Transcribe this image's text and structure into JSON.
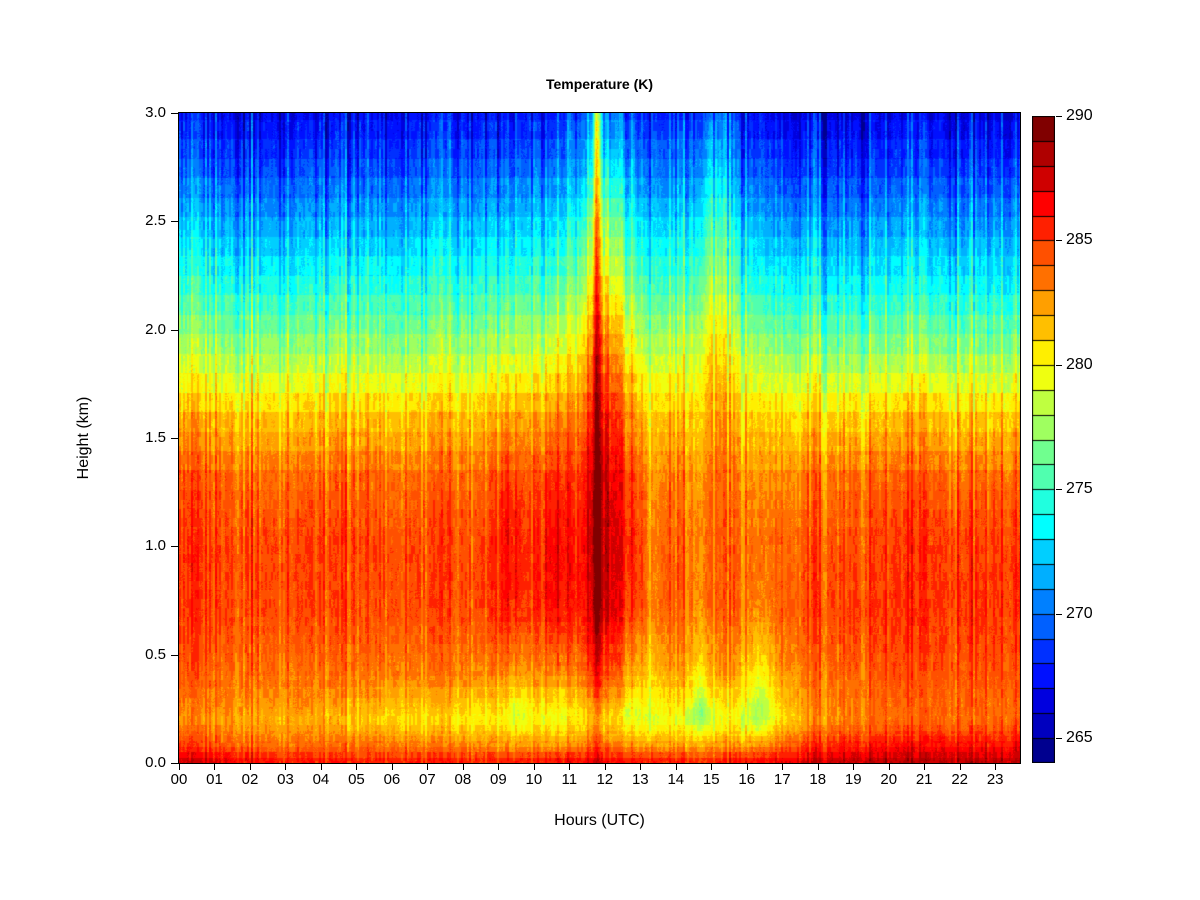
{
  "title": "Temperature (K)",
  "x_axis": {
    "label": "Hours (UTC)",
    "tick_labels": [
      "00",
      "01",
      "02",
      "03",
      "04",
      "05",
      "06",
      "07",
      "08",
      "09",
      "10",
      "11",
      "12",
      "13",
      "14",
      "15",
      "16",
      "17",
      "18",
      "19",
      "20",
      "21",
      "22",
      "23"
    ],
    "tick_hours": [
      0,
      1,
      2,
      3,
      4,
      5,
      6,
      7,
      8,
      9,
      10,
      11,
      12,
      13,
      14,
      15,
      16,
      17,
      18,
      19,
      20,
      21,
      22,
      23
    ],
    "hour_range": [
      0,
      23.7
    ]
  },
  "y_axis": {
    "label": "Height (km)",
    "tick_labels": [
      "0.0",
      "0.5",
      "1.0",
      "1.5",
      "2.0",
      "2.5",
      "3.0"
    ],
    "tick_values": [
      0,
      0.5,
      1.0,
      1.5,
      2.0,
      2.5,
      3.0
    ],
    "range_km": [
      0,
      3.0
    ]
  },
  "colorbar": {
    "min_K": 264,
    "max_K": 290,
    "tick_labels": [
      "265",
      "270",
      "275",
      "280",
      "285",
      "290"
    ],
    "tick_values": [
      265,
      270,
      275,
      280,
      285,
      290
    ],
    "n_blocks": 26,
    "palette_low_to_high": [
      "#00008F",
      "#0000BF",
      "#0000DF",
      "#0010FF",
      "#0030FF",
      "#0060FF",
      "#0080FF",
      "#00AFFF",
      "#00CFFF",
      "#00FFFF",
      "#20FFDF",
      "#50FFAF",
      "#70FF8F",
      "#9FFF60",
      "#BFFF40",
      "#EFFF10",
      "#FFEF00",
      "#FFBF00",
      "#FF9F00",
      "#FF7000",
      "#FF5000",
      "#FF2000",
      "#FF0000",
      "#CF0000",
      "#AF0000",
      "#800000"
    ]
  },
  "chart_data": {
    "type": "heatmap",
    "title": "Temperature (K)",
    "xlabel": "Hours (UTC)",
    "ylabel": "Height (km)",
    "x_hours": [
      0,
      1,
      2,
      3,
      4,
      5,
      6,
      7,
      8,
      9,
      10,
      11,
      12,
      13,
      14,
      15,
      16,
      17,
      18,
      19,
      20,
      21,
      22,
      23,
      24
    ],
    "y_heights_km": [
      0.0,
      0.08,
      0.2,
      0.4,
      0.7,
      1.0,
      1.3,
      1.6,
      1.9,
      2.2,
      2.5,
      2.75,
      3.0
    ],
    "temperature_K": [
      [
        287.8,
        287.5,
        286.8,
        286.3,
        286.2,
        286.0,
        286.0,
        286.0,
        286.0,
        286.2,
        286.3,
        286.5,
        287.0,
        286.3,
        286.2,
        286.2,
        286.5,
        287.2,
        287.8,
        288.0,
        288.2,
        288.2,
        288.3,
        288.3,
        288.3
      ],
      [
        285.0,
        284.5,
        284.0,
        283.8,
        283.8,
        283.6,
        283.5,
        283.4,
        283.3,
        283.0,
        282.8,
        282.8,
        283.5,
        282.8,
        282.6,
        282.6,
        282.8,
        284.0,
        285.3,
        285.8,
        286.0,
        286.2,
        286.3,
        286.3,
        286.3
      ],
      [
        282.8,
        282.6,
        282.4,
        282.2,
        282.0,
        281.4,
        281.0,
        280.8,
        280.6,
        280.2,
        280.0,
        280.0,
        280.6,
        280.0,
        279.6,
        279.4,
        279.5,
        281.0,
        282.6,
        283.2,
        283.5,
        283.6,
        283.7,
        283.7,
        283.7
      ],
      [
        284.0,
        283.9,
        283.8,
        283.7,
        283.6,
        283.5,
        283.4,
        283.3,
        283.2,
        283.0,
        282.8,
        282.8,
        284.0,
        282.5,
        282.2,
        282.2,
        282.0,
        282.8,
        283.6,
        284.0,
        284.2,
        284.3,
        284.4,
        284.4,
        284.4
      ],
      [
        284.9,
        284.9,
        284.8,
        284.8,
        284.7,
        284.6,
        284.6,
        284.6,
        284.7,
        285.0,
        285.0,
        285.0,
        286.5,
        284.8,
        284.0,
        283.8,
        283.8,
        284.2,
        284.6,
        284.9,
        285.0,
        285.1,
        285.2,
        285.2,
        285.2
      ],
      [
        285.0,
        285.0,
        284.9,
        284.9,
        284.8,
        284.7,
        284.7,
        284.7,
        284.8,
        285.1,
        285.2,
        285.2,
        287.0,
        284.9,
        284.0,
        283.8,
        283.8,
        284.0,
        284.3,
        284.6,
        284.8,
        285.0,
        285.0,
        285.0,
        285.0
      ],
      [
        284.2,
        284.2,
        284.1,
        284.0,
        284.0,
        283.9,
        283.9,
        283.9,
        284.0,
        284.3,
        284.4,
        284.4,
        286.5,
        284.2,
        283.4,
        283.2,
        283.0,
        283.2,
        283.5,
        283.8,
        284.0,
        284.0,
        284.0,
        284.0,
        284.0
      ],
      [
        281.8,
        281.8,
        281.7,
        281.6,
        281.6,
        281.5,
        281.5,
        281.5,
        281.7,
        282.0,
        282.2,
        282.4,
        285.0,
        282.2,
        281.6,
        281.8,
        281.2,
        281.0,
        281.0,
        281.2,
        281.3,
        281.4,
        281.4,
        281.4,
        281.4
      ],
      [
        277.8,
        277.8,
        277.7,
        277.7,
        277.6,
        277.6,
        277.6,
        277.7,
        278.0,
        278.4,
        278.7,
        279.0,
        283.0,
        279.0,
        278.4,
        280.0,
        278.0,
        277.4,
        277.0,
        277.0,
        277.1,
        277.1,
        277.2,
        277.2,
        277.2
      ],
      [
        274.6,
        274.6,
        274.5,
        274.4,
        274.4,
        274.4,
        274.4,
        274.6,
        274.9,
        275.2,
        275.4,
        275.7,
        280.0,
        275.9,
        275.4,
        277.2,
        274.7,
        274.0,
        273.6,
        273.6,
        273.7,
        273.7,
        273.8,
        273.8,
        273.8
      ],
      [
        271.6,
        271.6,
        271.5,
        271.4,
        271.4,
        271.4,
        271.5,
        271.7,
        272.0,
        272.3,
        272.5,
        272.8,
        277.0,
        273.0,
        272.6,
        274.5,
        271.9,
        271.1,
        270.8,
        270.8,
        270.9,
        270.9,
        271.0,
        271.0,
        271.0
      ],
      [
        269.2,
        269.2,
        269.1,
        269.0,
        269.0,
        269.0,
        269.1,
        269.3,
        269.6,
        269.8,
        270.0,
        270.2,
        273.5,
        270.4,
        270.1,
        271.8,
        269.4,
        268.7,
        268.4,
        268.4,
        268.5,
        268.5,
        268.6,
        268.6,
        268.6
      ],
      [
        267.2,
        267.2,
        267.1,
        267.0,
        267.0,
        267.0,
        267.1,
        267.3,
        267.6,
        267.8,
        268.0,
        268.2,
        270.8,
        268.4,
        268.1,
        269.5,
        267.4,
        266.7,
        266.5,
        266.5,
        266.6,
        266.6,
        266.7,
        266.7,
        266.7
      ]
    ],
    "streaks": [
      {
        "hour": 11.78,
        "sigma": 0.07,
        "amp_by_height": [
          [
            0.0,
            1.0
          ],
          [
            0.5,
            2.2
          ],
          [
            1.0,
            2.8
          ],
          [
            1.5,
            3.2
          ],
          [
            2.0,
            4.5
          ],
          [
            2.5,
            6.0
          ],
          [
            3.0,
            8.0
          ]
        ]
      },
      {
        "hour": 11.95,
        "sigma": 0.38,
        "amp_by_height": [
          [
            0.0,
            0.3
          ],
          [
            0.5,
            1.2
          ],
          [
            0.8,
            1.6
          ],
          [
            1.2,
            1.7
          ],
          [
            1.6,
            1.8
          ],
          [
            2.0,
            1.5
          ],
          [
            2.5,
            1.2
          ],
          [
            3.0,
            0.8
          ]
        ]
      },
      {
        "hour": 9.25,
        "sigma": 0.28,
        "amp_by_height": [
          [
            0.0,
            0.0
          ],
          [
            0.4,
            0.8
          ],
          [
            0.7,
            1.4
          ],
          [
            1.2,
            1.4
          ],
          [
            1.6,
            0.8
          ],
          [
            2.2,
            0.3
          ],
          [
            3.0,
            0.0
          ]
        ]
      },
      {
        "hour": 10.55,
        "sigma": 0.3,
        "amp_by_height": [
          [
            0.0,
            0.0
          ],
          [
            0.4,
            0.9
          ],
          [
            0.7,
            1.5
          ],
          [
            1.2,
            1.5
          ],
          [
            1.6,
            0.9
          ],
          [
            2.2,
            0.4
          ],
          [
            3.0,
            0.0
          ]
        ]
      },
      {
        "hour": 15.15,
        "sigma": 0.22,
        "amp_by_height": [
          [
            0.0,
            0.0
          ],
          [
            0.7,
            0.3
          ],
          [
            1.3,
            0.8
          ],
          [
            1.8,
            1.3
          ],
          [
            2.2,
            1.5
          ],
          [
            2.6,
            1.5
          ],
          [
            3.0,
            1.0
          ]
        ]
      },
      {
        "hour": 13.35,
        "sigma": 0.15,
        "amp_by_height": [
          [
            0.0,
            0.0
          ],
          [
            0.3,
            -1.2
          ],
          [
            0.7,
            -1.6
          ],
          [
            1.2,
            -1.5
          ],
          [
            1.6,
            -1.0
          ],
          [
            2.0,
            -0.5
          ],
          [
            3.0,
            0.0
          ]
        ]
      },
      {
        "hour": 14.7,
        "sigma": 0.18,
        "amp_by_height": [
          [
            0.0,
            0.0
          ],
          [
            0.1,
            -0.5
          ],
          [
            0.25,
            -2.6
          ],
          [
            0.5,
            -1.2
          ],
          [
            0.9,
            -0.4
          ],
          [
            3.0,
            0.0
          ]
        ]
      },
      {
        "hour": 16.4,
        "sigma": 0.28,
        "amp_by_height": [
          [
            0.0,
            0.0
          ],
          [
            0.1,
            -0.8
          ],
          [
            0.25,
            -3.0
          ],
          [
            0.5,
            -1.8
          ],
          [
            0.9,
            -0.6
          ],
          [
            1.4,
            -0.2
          ],
          [
            3.0,
            0.0
          ]
        ]
      },
      {
        "hour": 9.5,
        "sigma": 0.25,
        "amp_by_height": [
          [
            0.0,
            0.0
          ],
          [
            0.1,
            -0.4
          ],
          [
            0.25,
            -1.5
          ],
          [
            0.45,
            -0.8
          ],
          [
            0.8,
            0.0
          ],
          [
            3.0,
            0.0
          ]
        ]
      },
      {
        "hour": 10.7,
        "sigma": 0.25,
        "amp_by_height": [
          [
            0.0,
            0.0
          ],
          [
            0.1,
            -0.4
          ],
          [
            0.25,
            -1.3
          ],
          [
            0.45,
            -0.6
          ],
          [
            0.8,
            0.0
          ],
          [
            3.0,
            0.0
          ]
        ]
      },
      {
        "hour": 12.8,
        "sigma": 0.2,
        "amp_by_height": [
          [
            0.0,
            0.0
          ],
          [
            0.1,
            -0.3
          ],
          [
            0.25,
            -1.4
          ],
          [
            0.5,
            -0.7
          ],
          [
            0.9,
            0.0
          ],
          [
            3.0,
            0.0
          ]
        ]
      }
    ],
    "noise": {
      "column_amp_K": 1.0,
      "patch_amp_K": 0.6,
      "fine_amp_K": 0.25
    }
  }
}
